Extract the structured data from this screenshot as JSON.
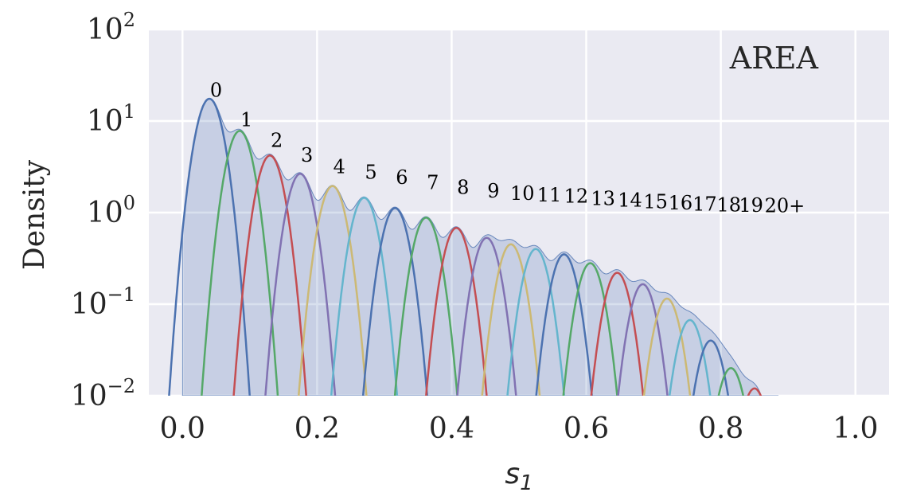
{
  "chart_data": {
    "type": "area",
    "panel_label": "AREA",
    "xlabel_main": "s",
    "xlabel_sub": "1",
    "ylabel": "Density",
    "xlim": [
      -0.05,
      1.05
    ],
    "ylim": [
      0.01,
      100
    ],
    "yscale": "log",
    "grid": true,
    "x_ticks": [
      "0.0",
      "0.2",
      "0.4",
      "0.6",
      "0.8",
      "1.0"
    ],
    "x_tick_values": [
      0.0,
      0.2,
      0.4,
      0.6,
      0.8,
      1.0
    ],
    "y_ticks": [
      {
        "base": "10",
        "exp": "2",
        "value": 100
      },
      {
        "base": "10",
        "exp": "1",
        "value": 10
      },
      {
        "base": "10",
        "exp": "0",
        "value": 1
      },
      {
        "base": "10",
        "exp": "−1",
        "value": 0.1
      },
      {
        "base": "10",
        "exp": "−2",
        "value": 0.01
      }
    ],
    "palette": [
      "#4c72b0",
      "#55a868",
      "#c44e52",
      "#8172b2",
      "#ccb974",
      "#64b5cd"
    ],
    "series": [
      {
        "name": "0",
        "center": 0.04,
        "peak": 17.5,
        "width": 0.0155
      },
      {
        "name": "1",
        "center": 0.085,
        "peak": 7.8,
        "width": 0.0155
      },
      {
        "name": "2",
        "center": 0.13,
        "peak": 4.2,
        "width": 0.0155
      },
      {
        "name": "3",
        "center": 0.175,
        "peak": 2.65,
        "width": 0.0155
      },
      {
        "name": "4",
        "center": 0.223,
        "peak": 1.95,
        "width": 0.0155
      },
      {
        "name": "5",
        "center": 0.27,
        "peak": 1.45,
        "width": 0.0155
      },
      {
        "name": "6",
        "center": 0.316,
        "peak": 1.12,
        "width": 0.0155
      },
      {
        "name": "7",
        "center": 0.362,
        "peak": 0.88,
        "width": 0.0155
      },
      {
        "name": "8",
        "center": 0.407,
        "peak": 0.68,
        "width": 0.0155
      },
      {
        "name": "9",
        "center": 0.452,
        "peak": 0.53,
        "width": 0.0155
      },
      {
        "name": "10",
        "center": 0.488,
        "peak": 0.45,
        "width": 0.0155
      },
      {
        "name": "11",
        "center": 0.525,
        "peak": 0.4,
        "width": 0.0155
      },
      {
        "name": "12",
        "center": 0.567,
        "peak": 0.35,
        "width": 0.0155
      },
      {
        "name": "13",
        "center": 0.606,
        "peak": 0.28,
        "width": 0.0155
      },
      {
        "name": "14",
        "center": 0.646,
        "peak": 0.22,
        "width": 0.0155
      },
      {
        "name": "15",
        "center": 0.684,
        "peak": 0.165,
        "width": 0.0155
      },
      {
        "name": "16",
        "center": 0.72,
        "peak": 0.115,
        "width": 0.0155
      },
      {
        "name": "17",
        "center": 0.754,
        "peak": 0.067,
        "width": 0.0155
      },
      {
        "name": "18",
        "center": 0.785,
        "peak": 0.04,
        "width": 0.0155
      },
      {
        "name": "19",
        "center": 0.815,
        "peak": 0.02,
        "width": 0.0155
      },
      {
        "name": "20+",
        "center": 0.85,
        "peak": 0.012,
        "width": 0.0155
      }
    ],
    "label_positions_data": [
      {
        "text": "0",
        "x": 0.05,
        "y": 18.5
      },
      {
        "text": "1",
        "x": 0.095,
        "y": 8.8
      },
      {
        "text": "2",
        "x": 0.14,
        "y": 5.2
      },
      {
        "text": "3",
        "x": 0.185,
        "y": 3.6
      },
      {
        "text": "4",
        "x": 0.233,
        "y": 2.7
      },
      {
        "text": "5",
        "x": 0.28,
        "y": 2.35
      },
      {
        "text": "6",
        "x": 0.326,
        "y": 2.05
      },
      {
        "text": "7",
        "x": 0.372,
        "y": 1.8
      },
      {
        "text": "8",
        "x": 0.417,
        "y": 1.6
      },
      {
        "text": "9",
        "x": 0.462,
        "y": 1.47
      },
      {
        "text": "10",
        "x": 0.505,
        "y": 1.38
      },
      {
        "text": "11",
        "x": 0.545,
        "y": 1.33
      },
      {
        "text": "12",
        "x": 0.585,
        "y": 1.28
      },
      {
        "text": "13",
        "x": 0.625,
        "y": 1.21
      },
      {
        "text": "14",
        "x": 0.665,
        "y": 1.16
      },
      {
        "text": "15",
        "x": 0.703,
        "y": 1.12
      },
      {
        "text": "16",
        "x": 0.74,
        "y": 1.08
      },
      {
        "text": "17",
        "x": 0.776,
        "y": 1.05
      },
      {
        "text": "18",
        "x": 0.812,
        "y": 1.03
      },
      {
        "text": "19",
        "x": 0.845,
        "y": 1.02
      },
      {
        "text": "20+",
        "x": 0.895,
        "y": 1.01
      }
    ]
  }
}
